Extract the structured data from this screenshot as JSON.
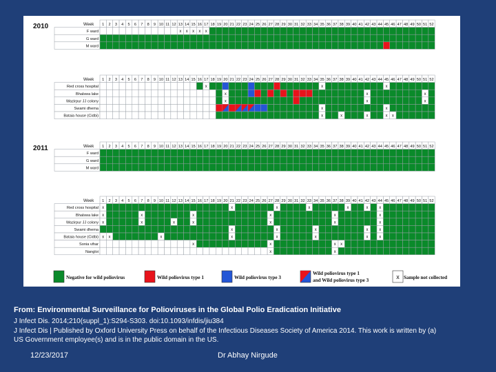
{
  "caption": {
    "title": "From: Environmental Surveillance for Polioviruses in the Global Polio Eradication Initiative",
    "line1": "J Infect Dis. 2014;210(suppl_1):S294-S303. doi:10.1093/infdis/jiu384",
    "line2": "J Infect Dis | Published by Oxford University Press on behalf of the Infectious Diseases Society of America 2014. This work is written by (a)",
    "line3": "US Government employee(s) and is in the public domain in the US."
  },
  "footer": {
    "date": "12/23/2017",
    "author": "Dr Abhay Nirgude"
  },
  "colors": {
    "negative": "#0a8a2a",
    "wpv1": "#e8131b",
    "wpv3": "#2456d6",
    "empty": "#ffffff",
    "grid": "#9aa0a8",
    "page": "#1f3f78"
  },
  "chart_data": {
    "type": "heatmap",
    "weeks": [
      "1",
      "2",
      "3",
      "4",
      "5",
      "6",
      "7",
      "8",
      "9",
      "10",
      "11",
      "12",
      "13",
      "14",
      "15",
      "16",
      "17",
      "18",
      "19",
      "20",
      "21",
      "22",
      "23",
      "24",
      "25",
      "26",
      "27",
      "28",
      "29",
      "30",
      "31",
      "32",
      "33",
      "34",
      "35",
      "36",
      "37",
      "38",
      "39",
      "40",
      "41",
      "42",
      "43",
      "44",
      "45",
      "46",
      "47",
      "48",
      "49",
      "50",
      "51",
      "52"
    ],
    "week_header_label": "Week",
    "legend": [
      {
        "key": "N",
        "label": "Negative for wild poliovirus"
      },
      {
        "key": "1",
        "label": "Wild poliovirus type 1"
      },
      {
        "key": "3",
        "label": "Wild poliovirus type 3"
      },
      {
        "key": "B",
        "label": "Wild poliovirus type 1 and Wild poliovirus type 3"
      },
      {
        "key": "x",
        "label": "Sample not collected"
      }
    ],
    "panels": [
      {
        "year": "2010",
        "sites": [
          {
            "name": "F ward",
            "start": 13,
            "marks": {
              "13": "x",
              "14": "x",
              "15": "x",
              "16": "x",
              "17": "x"
            }
          },
          {
            "name": "G ward",
            "start": 1,
            "marks": {}
          },
          {
            "name": "M ward",
            "start": 1,
            "marks": {
              "45": "1"
            }
          }
        ]
      },
      {
        "year": "",
        "sites": [
          {
            "name": "Red cross hospital",
            "start": 16,
            "marks": {
              "17": "x",
              "20": "3",
              "24": "3",
              "28": "1",
              "35": "x",
              "45": "x"
            }
          },
          {
            "name": "Bhalswa lake",
            "start": 19,
            "marks": {
              "20": "x",
              "24": "3",
              "25": "1",
              "27": "1",
              "29": "1",
              "31": "1",
              "32": "1",
              "33": "1",
              "42": "x",
              "51": "x"
            }
          },
          {
            "name": "Wazirpur JJ colony",
            "start": 19,
            "marks": {
              "20": "x",
              "31": "1",
              "42": "x",
              "51": "x"
            }
          },
          {
            "name": "Swami dhema",
            "start": 19,
            "marks": {
              "19": "1",
              "20": "B",
              "21": "1",
              "22": "B",
              "23": "B",
              "24": "B",
              "25": "3",
              "26": "3",
              "35": "x",
              "45": "x"
            }
          },
          {
            "name": "Bataia house (Cidbi)",
            "start": 19,
            "marks": {
              "35": "x",
              "38": "x",
              "42": "x",
              "45": "x",
              "46": "x"
            }
          }
        ]
      },
      {
        "year": "2011",
        "sites": [
          {
            "name": "F ward",
            "start": 1,
            "marks": {}
          },
          {
            "name": "G ward",
            "start": 1,
            "marks": {}
          },
          {
            "name": "M ward",
            "start": 1,
            "marks": {}
          }
        ]
      },
      {
        "year": "",
        "sites": [
          {
            "name": "Red cross hospital",
            "start": 1,
            "marks": {
              "1": "x",
              "21": "x",
              "28": "x",
              "33": "x",
              "39": "x",
              "42": "x",
              "44": "x"
            }
          },
          {
            "name": "Bhalswa lake",
            "start": 1,
            "marks": {
              "1": "x",
              "7": "x",
              "15": "x",
              "27": "x",
              "37": "x",
              "44": "x"
            }
          },
          {
            "name": "Wazirpur JJ colony",
            "start": 1,
            "marks": {
              "1": "x",
              "7": "x",
              "12": "x",
              "15": "x",
              "27": "x",
              "37": "x",
              "44": "x"
            }
          },
          {
            "name": "Swami dhema",
            "start": 1,
            "marks": {
              "21": "x",
              "28": "x",
              "34": "x",
              "42": "x",
              "44": "x"
            }
          },
          {
            "name": "Bataia house (Cidbi)",
            "start": 1,
            "marks": {
              "1": "x",
              "2": "x",
              "10": "x",
              "21": "x",
              "28": "x",
              "34": "x",
              "42": "x",
              "44": "x"
            }
          },
          {
            "name": "Sonia vihar",
            "start": 15,
            "marks": {
              "15": "x",
              "27": "x",
              "37": "x",
              "38": "x"
            }
          },
          {
            "name": "Nangloi",
            "start": 27,
            "marks": {
              "27": "x",
              "37": "x"
            }
          }
        ]
      }
    ]
  }
}
